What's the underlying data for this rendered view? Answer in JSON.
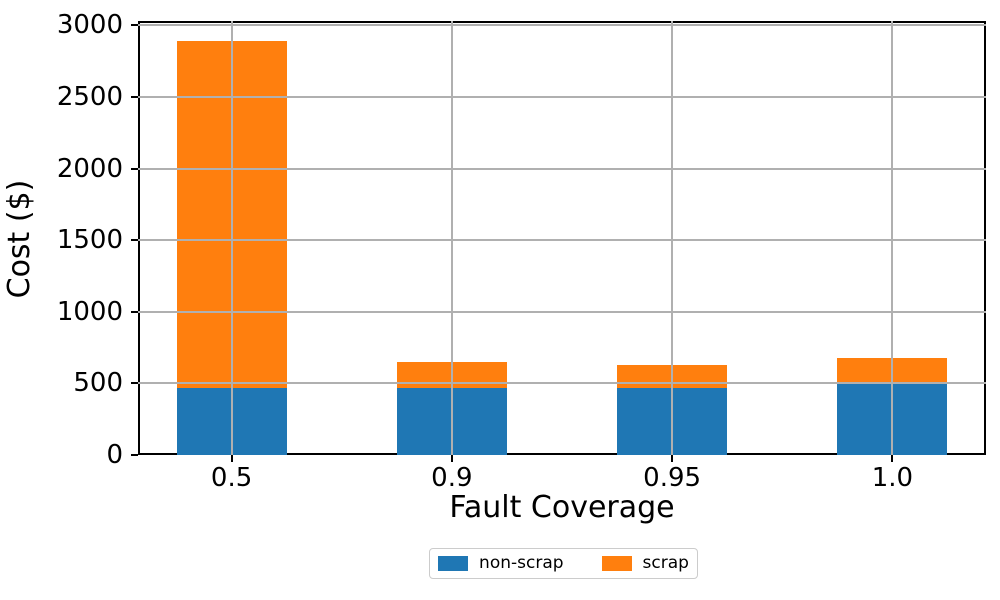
{
  "chart_data": {
    "type": "bar",
    "stacked": true,
    "title": "",
    "xlabel": "Fault Coverage",
    "ylabel": "Cost ($)",
    "categories": [
      "0.5",
      "0.9",
      "0.95",
      "1.0"
    ],
    "series": [
      {
        "name": "non-scrap",
        "color": "#1f77b4",
        "values": [
          470,
          470,
          470,
          500
        ]
      },
      {
        "name": "scrap",
        "color": "#ff7f0e",
        "values": [
          2420,
          180,
          155,
          175
        ]
      }
    ],
    "totals": [
      2890,
      650,
      625,
      675
    ],
    "yticks": [
      0,
      500,
      1000,
      1500,
      2000,
      2500,
      3000
    ],
    "ytick_labels": [
      "0",
      "500",
      "1000",
      "1500",
      "2000",
      "2500",
      "3000"
    ],
    "ylim": [
      0,
      3030
    ],
    "grid": true,
    "grid_over_bars": true,
    "legend_position": "bottom-center",
    "bar_width_fraction": 0.5
  },
  "colors": {
    "background": "#ffffff",
    "grid": "#b0b0b0",
    "spine": "#000000",
    "non_scrap": "#1f77b4",
    "scrap": "#ff7f0e"
  }
}
